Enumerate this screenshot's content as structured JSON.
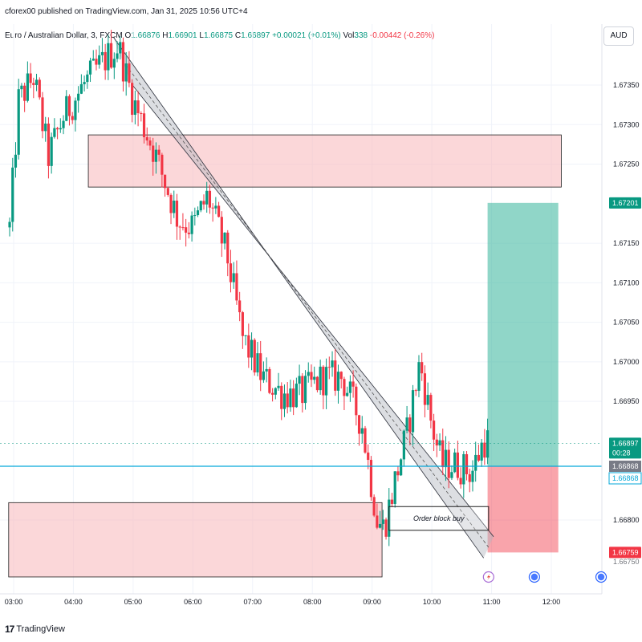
{
  "header": {
    "attribution": "cforex00 published on TradingView.com, Jan 31, 2025 10:56 UTC+4",
    "symbol": "Euro / Australian Dollar, 3, FXCM",
    "open_label": "O",
    "open_value": "1.66876",
    "high_label": "H",
    "high_value": "1.66901",
    "low_label": "L",
    "low_value": "1.66875",
    "close_label": "C",
    "close_value": "1.66897",
    "change_value": "+0.00021 (+0.01%)",
    "vol_label": "Vol",
    "vol_value": "338",
    "vol_change": "-0.00442 (-0.26%)",
    "currency": "AUD"
  },
  "footer": {
    "brand": "TradingView",
    "brand_mark": "17"
  },
  "colors": {
    "up": "#089981",
    "down": "#f23645",
    "zone": "#f8bcbf",
    "target": "#3fb8a0",
    "stop": "#f23645",
    "current_line": "#06a9d9",
    "channel": "#9e9e9e"
  },
  "chart_data": {
    "type": "candlestick",
    "title": "Euro / Australian Dollar, 3, FXCM",
    "xlabel": "",
    "ylabel": "",
    "y_ticks": [
      1.6735,
      1.673,
      1.6725,
      1.6715,
      1.671,
      1.6705,
      1.67,
      1.6695,
      1.668
    ],
    "y_tick_labels": [
      "1.67350",
      "1.67300",
      "1.67250",
      "1.67150",
      "1.67100",
      "1.67050",
      "1.67000",
      "1.66950",
      "1.66800"
    ],
    "partial_tick_label": "1.66750",
    "x_ticks": [
      "03:00",
      "04:00",
      "05:00",
      "06:00",
      "07:00",
      "08:00",
      "09:00",
      "10:00",
      "11:00",
      "12:00"
    ],
    "grid": true,
    "price_labels": [
      {
        "name": "target",
        "value": 1.67201,
        "text": "1.67201",
        "color": "#089981"
      },
      {
        "name": "last-price",
        "value": 1.66897,
        "text": "1.66897",
        "extra": "00:28",
        "color": "#089981"
      },
      {
        "name": "entry",
        "value": 1.66868,
        "text": "1.66868",
        "color": "#787b86"
      },
      {
        "name": "current-line",
        "value": 1.66868,
        "text": "1.66868",
        "color": "#06a9d9"
      },
      {
        "name": "stop",
        "value": 1.66759,
        "text": "1.66759",
        "color": "#f23645"
      }
    ],
    "zones": [
      {
        "name": "supply-zone",
        "time_start": "04:15",
        "time_end": "12:10",
        "price_high": 1.67287,
        "price_low": 1.67221
      },
      {
        "name": "demand-zone",
        "time_start": "02:55",
        "time_end": "09:10",
        "price_high": 1.66822,
        "price_low": 1.66728
      }
    ],
    "order_block": {
      "label": "Order block buy",
      "time_start": "09:17",
      "time_end": "10:57",
      "price_high": 1.66817,
      "price_low": 1.66787
    },
    "position": {
      "time_start": "10:56",
      "time_end": "12:07",
      "entry": 1.66868,
      "target": 1.67201,
      "stop": 1.66759
    },
    "channel": [
      {
        "time": "04:40",
        "price": 1.67411
      },
      {
        "time": "10:52",
        "price": 1.66752
      },
      {
        "time": "04:58",
        "price": 1.67352
      },
      {
        "time": "11:02",
        "price": 1.66779
      }
    ],
    "current_price": 1.66868,
    "last_price": 1.66897,
    "dotted_price_line": 1.66897,
    "candle_count": 160,
    "waypoints": [
      {
        "time": "02:56",
        "price": 1.6717
      },
      {
        "time": "03:05",
        "price": 1.6733
      },
      {
        "time": "03:20",
        "price": 1.6736
      },
      {
        "time": "03:35",
        "price": 1.6726
      },
      {
        "time": "03:50",
        "price": 1.6731
      },
      {
        "time": "04:10",
        "price": 1.6735
      },
      {
        "time": "04:30",
        "price": 1.6738
      },
      {
        "time": "04:45",
        "price": 1.674
      },
      {
        "time": "05:00",
        "price": 1.6733
      },
      {
        "time": "05:20",
        "price": 1.6727
      },
      {
        "time": "05:45",
        "price": 1.6718
      },
      {
        "time": "06:00",
        "price": 1.6717
      },
      {
        "time": "06:15",
        "price": 1.6721
      },
      {
        "time": "06:35",
        "price": 1.6713
      },
      {
        "time": "06:50",
        "price": 1.6703
      },
      {
        "time": "07:10",
        "price": 1.6698
      },
      {
        "time": "07:30",
        "price": 1.6696
      },
      {
        "time": "07:50",
        "price": 1.6696
      },
      {
        "time": "08:10",
        "price": 1.6698
      },
      {
        "time": "08:30",
        "price": 1.6698
      },
      {
        "time": "08:50",
        "price": 1.6692
      },
      {
        "time": "09:05",
        "price": 1.668
      },
      {
        "time": "09:12",
        "price": 1.6679
      },
      {
        "time": "09:25",
        "price": 1.6686
      },
      {
        "time": "09:35",
        "price": 1.6691
      },
      {
        "time": "09:48",
        "price": 1.67
      },
      {
        "time": "10:00",
        "price": 1.6692
      },
      {
        "time": "10:10",
        "price": 1.6687
      },
      {
        "time": "10:25",
        "price": 1.6687
      },
      {
        "time": "10:40",
        "price": 1.6686
      },
      {
        "time": "10:52",
        "price": 1.669
      }
    ],
    "event_icons": [
      {
        "time": "10:57",
        "name": "lightning-icon",
        "color": "#a86cd6"
      },
      {
        "time": "11:43",
        "name": "globe-icon",
        "color": "#2962ff"
      },
      {
        "time": "12:50",
        "name": "globe-icon",
        "color": "#2962ff"
      }
    ]
  }
}
